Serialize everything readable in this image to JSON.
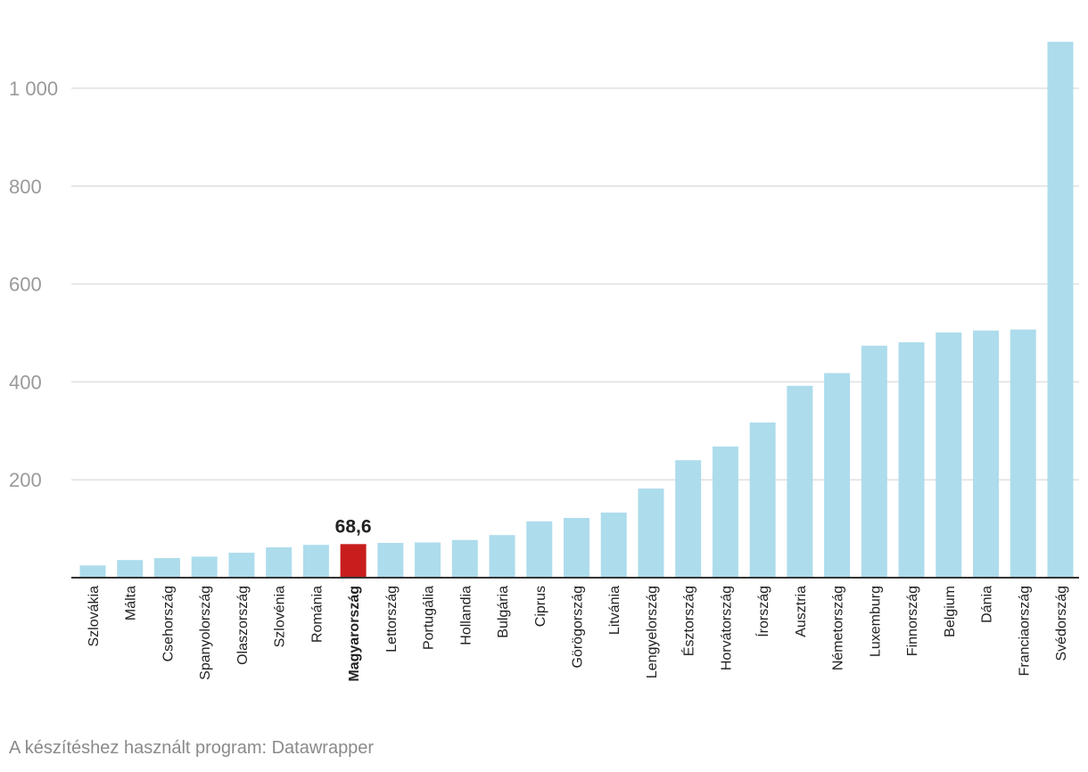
{
  "chart_data": {
    "type": "bar",
    "title": "",
    "xlabel": "",
    "ylabel": "",
    "ylim": [
      0,
      1100
    ],
    "yticks": [
      200,
      400,
      600,
      800,
      1000
    ],
    "ytick_labels": [
      "200",
      "400",
      "600",
      "800",
      "1 000"
    ],
    "grid": true,
    "highlight_category": "Magyarország",
    "highlight_label": "68,6",
    "colors": {
      "bar": "#addcec",
      "highlight": "#c71e1d",
      "grid": "#e0e0e0",
      "axis": "#333333",
      "tick_text": "#9a9a9a"
    },
    "categories": [
      "Szlovákia",
      "Málta",
      "Csehország",
      "Spanyolország",
      "Olaszország",
      "Szlovénia",
      "Románia",
      "Magyarország",
      "Lettország",
      "Portugália",
      "Hollandia",
      "Bulgária",
      "Ciprus",
      "Görögország",
      "Litvánia",
      "Lengyelország",
      "Észtország",
      "Horvátország",
      "Írország",
      "Ausztria",
      "Németország",
      "Luxemburg",
      "Finnország",
      "Belgium",
      "Dánia",
      "Franciaország",
      "Svédország"
    ],
    "values": [
      25,
      36,
      40,
      43,
      51,
      62,
      67,
      68.6,
      71,
      72,
      77,
      87,
      115,
      122,
      133,
      182,
      240,
      268,
      317,
      392,
      418,
      474,
      481,
      501,
      505,
      507,
      1095
    ]
  },
  "footer": {
    "source": "A készítéshez használt program: Datawrapper"
  }
}
